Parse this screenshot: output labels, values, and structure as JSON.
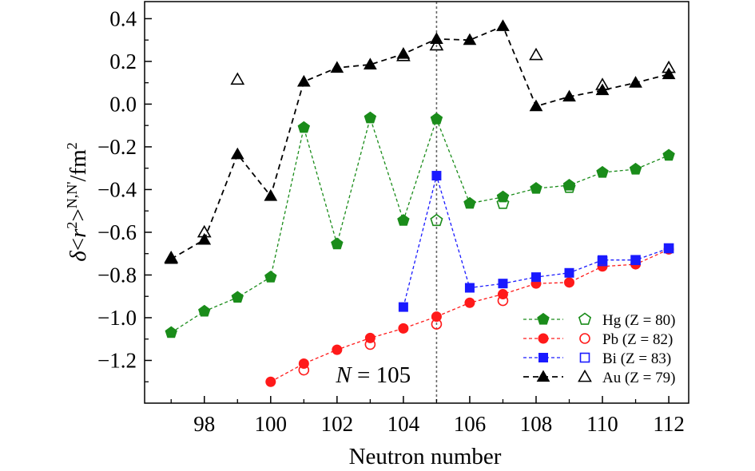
{
  "chart_data": {
    "type": "line",
    "xlabel": "Neutron number",
    "ylabel_parts": {
      "delta": "δ",
      "open": "<",
      "r": "r",
      "sq": "2",
      "close": ">",
      "sup": "N,N'",
      "unit": "/fm",
      "unit_exp": "2"
    },
    "xlim": [
      96.2,
      112.6
    ],
    "ylim": [
      -1.4,
      0.48
    ],
    "xticks": [
      98,
      100,
      102,
      104,
      106,
      108,
      110,
      112
    ],
    "yticks": [
      0.4,
      0.2,
      0.0,
      -0.2,
      -0.4,
      -0.6,
      -0.8,
      -1.0,
      -1.2
    ],
    "ytick_labels": [
      "0.4",
      "0.2",
      "0.0",
      "−0.2",
      "−0.4",
      "−0.6",
      "−0.8",
      "−1.0",
      "−1.2"
    ],
    "annotation": {
      "prefix": "N",
      "text": " = 105",
      "x": 105
    },
    "vline": {
      "x": 105,
      "color": "#666666"
    },
    "series": [
      {
        "name": "Hg (Z = 80)",
        "color": "#1a8c1a",
        "marker": "pentagon",
        "filled": {
          "x": [
            97,
            98,
            99,
            100,
            101,
            102,
            103,
            104,
            105,
            106,
            107,
            108,
            109,
            110,
            111,
            112
          ],
          "y": [
            -1.07,
            -0.97,
            -0.905,
            -0.81,
            -0.11,
            -0.655,
            -0.065,
            -0.545,
            -0.07,
            -0.465,
            -0.435,
            -0.395,
            -0.38,
            -0.32,
            -0.305,
            -0.24
          ]
        },
        "open": {
          "x": [
            105,
            107,
            109
          ],
          "y": [
            -0.545,
            -0.465,
            -0.39
          ]
        }
      },
      {
        "name": "Pb (Z = 82)",
        "color": "#ff1a1a",
        "marker": "circle",
        "filled": {
          "x": [
            100,
            101,
            102,
            103,
            104,
            105,
            106,
            107,
            108,
            109,
            110,
            111,
            112
          ],
          "y": [
            -1.3,
            -1.215,
            -1.15,
            -1.095,
            -1.05,
            -0.995,
            -0.93,
            -0.89,
            -0.84,
            -0.835,
            -0.76,
            -0.75,
            -0.68
          ]
        },
        "open": {
          "x": [
            101,
            103,
            105,
            107
          ],
          "y": [
            -1.245,
            -1.125,
            -1.03,
            -0.92
          ]
        }
      },
      {
        "name": "Bi (Z = 83)",
        "color": "#1a1aff",
        "marker": "square",
        "filled": {
          "x": [
            104,
            105,
            106,
            107,
            108,
            109,
            110,
            111,
            112
          ],
          "y": [
            -0.95,
            -0.335,
            -0.86,
            -0.84,
            -0.81,
            -0.79,
            -0.73,
            -0.73,
            -0.675
          ]
        },
        "open": {
          "x": [
            110,
            111,
            112
          ],
          "y": [
            -0.735,
            -0.73,
            -0.675
          ]
        }
      },
      {
        "name": "Au (Z = 79)",
        "color": "#000000",
        "marker": "triangle",
        "filled": {
          "x": [
            97,
            98,
            99,
            100,
            101,
            102,
            103,
            104,
            105,
            106,
            107,
            108,
            109,
            110,
            111,
            112
          ],
          "y": [
            -0.725,
            -0.635,
            -0.235,
            -0.43,
            0.105,
            0.17,
            0.185,
            0.235,
            0.305,
            0.3,
            0.365,
            -0.01,
            0.035,
            0.065,
            0.1,
            0.14
          ]
        },
        "open": {
          "x": [
            97,
            98,
            99,
            104,
            105,
            108,
            110,
            112
          ],
          "y": [
            -0.72,
            -0.6,
            0.115,
            0.225,
            0.275,
            0.23,
            0.09,
            0.17
          ]
        }
      }
    ]
  }
}
